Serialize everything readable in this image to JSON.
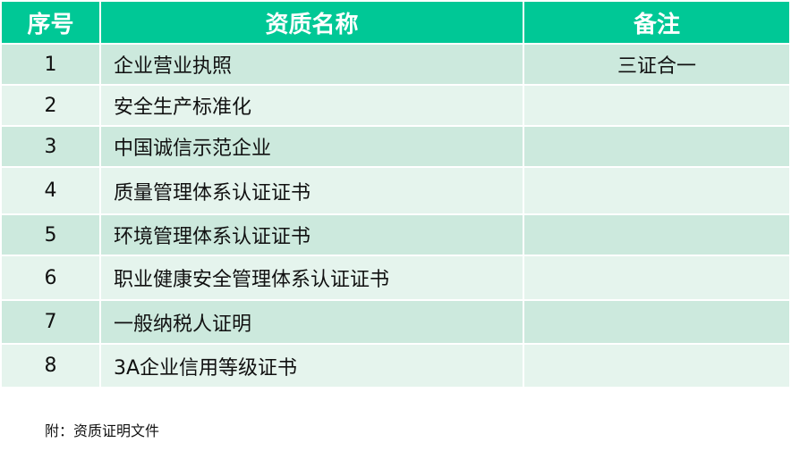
{
  "table": {
    "headers": [
      "序号",
      "资质名称",
      "备注"
    ],
    "rows": [
      {
        "no": "1",
        "name": "企业营业执照",
        "remark": "三证合一"
      },
      {
        "no": "2",
        "name": "安全生产标准化",
        "remark": ""
      },
      {
        "no": "3",
        "name": "中国诚信示范企业",
        "remark": ""
      },
      {
        "no": "4",
        "name": "质量管理体系认证证书",
        "remark": ""
      },
      {
        "no": "5",
        "name": "环境管理体系认证证书",
        "remark": ""
      },
      {
        "no": "6",
        "name": "职业健康安全管理体系认证证书",
        "remark": ""
      },
      {
        "no": "7",
        "name": "一般纳税人证明",
        "remark": ""
      },
      {
        "no": "8",
        "name": "3A企业信用等级证书",
        "remark": ""
      }
    ]
  },
  "note": "附：资质证明文件",
  "colors": {
    "header": "#00c896",
    "row_odd": "#cce9dd",
    "row_even": "#e5f4ed"
  }
}
